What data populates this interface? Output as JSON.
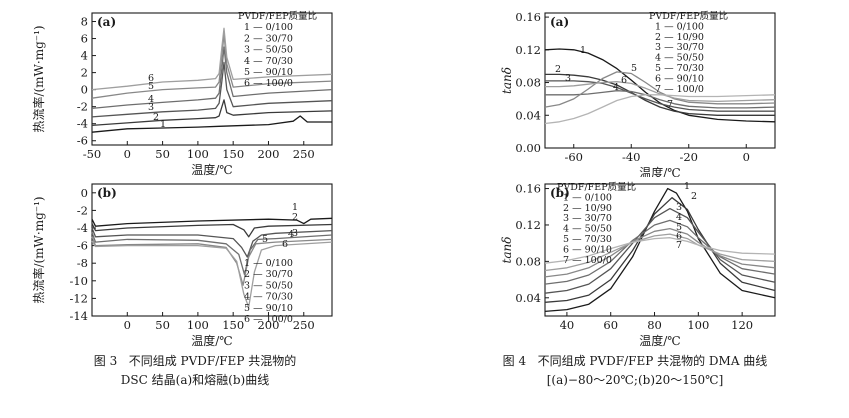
{
  "figures": [
    {
      "number_label": "图 3",
      "caption_line1": "不同组成 PVDF/FEP 共混物的",
      "caption_line2": "DSC 结晶(a)和熔融(b)曲线"
    },
    {
      "number_label": "图 4",
      "caption_line1": "不同组成 PVDF/FEP 共混物的 DMA 曲线",
      "caption_line2": "[(a)−80～20℃;(b)20～150℃]"
    }
  ],
  "chart_data": [
    {
      "id": "fig3a",
      "type": "line",
      "panel_label": "(a)",
      "xlabel": "温度/℃",
      "ylabel": "热流率/(mW·mg⁻¹)",
      "xlim": [
        -50,
        290
      ],
      "ylim": [
        -6.5,
        9
      ],
      "xticks": [
        -50,
        0,
        50,
        100,
        150,
        200,
        250
      ],
      "yticks": [
        -6,
        -4,
        -2,
        0,
        2,
        4,
        6,
        8
      ],
      "legend_title": "PVDF/FEP质量比",
      "legend_position": "top-right",
      "legend": [
        "1 — 0/100",
        "2 — 30/70",
        "3 — 50/50",
        "4 — 70/30",
        "5 — 90/10",
        "6 — 100/0"
      ],
      "series": [
        {
          "name": "1 — 0/100",
          "label": "1",
          "x": [
            -50,
            0,
            50,
            100,
            130,
            200,
            235,
            245,
            255,
            290
          ],
          "y": [
            -5.0,
            -4.6,
            -4.5,
            -4.4,
            -4.3,
            -4.1,
            -3.7,
            -3.1,
            -3.8,
            -3.8
          ]
        },
        {
          "name": "2 — 30/70",
          "label": "2",
          "x": [
            -50,
            0,
            50,
            100,
            125,
            130,
            134,
            137,
            141,
            150,
            200,
            290
          ],
          "y": [
            -4.2,
            -3.9,
            -3.6,
            -3.4,
            -3.3,
            -3.1,
            -2.0,
            -1.2,
            -2.7,
            -3.0,
            -2.7,
            -2.5
          ]
        },
        {
          "name": "3 — 50/50",
          "label": "3",
          "x": [
            -50,
            0,
            50,
            100,
            125,
            130,
            134,
            137,
            141,
            150,
            200,
            290
          ],
          "y": [
            -3.2,
            -2.9,
            -2.6,
            -2.4,
            -2.2,
            -1.6,
            1.0,
            3.2,
            0.0,
            -2.0,
            -1.6,
            -1.3
          ]
        },
        {
          "name": "4 — 70/30",
          "label": "4",
          "x": [
            -50,
            0,
            50,
            100,
            125,
            130,
            134,
            137,
            141,
            150,
            200,
            290
          ],
          "y": [
            -2.2,
            -1.8,
            -1.5,
            -1.2,
            -1.0,
            -0.4,
            2.5,
            5.0,
            2.0,
            -0.8,
            -0.4,
            0.0
          ]
        },
        {
          "name": "5 — 90/10",
          "label": "5",
          "x": [
            -50,
            0,
            50,
            100,
            125,
            130,
            134,
            137,
            141,
            150,
            200,
            290
          ],
          "y": [
            -1.0,
            -0.4,
            0.0,
            0.2,
            0.3,
            0.9,
            4.0,
            6.5,
            3.0,
            0.3,
            0.7,
            1.0
          ]
        },
        {
          "name": "6 — 100/0",
          "label": "6",
          "x": [
            -50,
            0,
            50,
            100,
            125,
            130,
            134,
            137,
            141,
            150,
            200,
            290
          ],
          "y": [
            0.0,
            0.4,
            0.9,
            1.1,
            1.3,
            1.9,
            5.0,
            7.2,
            3.8,
            1.2,
            1.5,
            1.8
          ]
        }
      ]
    },
    {
      "id": "fig3b",
      "type": "line",
      "panel_label": "(b)",
      "xlabel": "温度/℃",
      "ylabel": "热流率/(mW·mg⁻¹)",
      "xlim": [
        -50,
        290
      ],
      "ylim": [
        -14,
        1
      ],
      "xticks": [
        0,
        50,
        100,
        150,
        200,
        250
      ],
      "yticks": [
        -14,
        -12,
        -10,
        -8,
        -6,
        -4,
        -2,
        0
      ],
      "legend_position": "bottom-right",
      "legend": [
        "1 — 0/100",
        "2 — 30/70",
        "3 — 50/50",
        "4 — 70/30",
        "5 — 90/10",
        "6 — 100/0"
      ],
      "series": [
        {
          "name": "1 — 0/100",
          "label": "1",
          "x": [
            -50,
            -45,
            0,
            100,
            200,
            240,
            250,
            260,
            290
          ],
          "y": [
            -3.0,
            -3.8,
            -3.5,
            -3.2,
            -3.0,
            -3.1,
            -3.5,
            -3.0,
            -2.9
          ]
        },
        {
          "name": "2 — 30/70",
          "label": "2",
          "x": [
            -50,
            -45,
            0,
            100,
            150,
            165,
            172,
            180,
            200,
            290
          ],
          "y": [
            -3.5,
            -4.3,
            -4.0,
            -3.7,
            -3.6,
            -4.2,
            -5.0,
            -4.0,
            -3.8,
            -3.6
          ]
        },
        {
          "name": "3 — 50/50",
          "label": "3",
          "x": [
            -50,
            -45,
            0,
            100,
            150,
            162,
            170,
            178,
            190,
            210,
            290
          ],
          "y": [
            -4.0,
            -5.0,
            -4.8,
            -4.8,
            -5.2,
            -6.2,
            -7.3,
            -5.5,
            -4.8,
            -4.6,
            -4.3
          ]
        },
        {
          "name": "4 — 70/30",
          "label": "4",
          "x": [
            -50,
            -45,
            0,
            100,
            140,
            158,
            166,
            174,
            185,
            210,
            290
          ],
          "y": [
            -4.5,
            -5.6,
            -5.3,
            -5.4,
            -5.8,
            -7.0,
            -9.3,
            -6.5,
            -5.3,
            -5.2,
            -4.8
          ]
        },
        {
          "name": "5 — 90/10",
          "label": "5",
          "x": [
            -50,
            -45,
            0,
            100,
            140,
            155,
            164,
            172,
            182,
            210,
            290
          ],
          "y": [
            -5.0,
            -6.0,
            -5.9,
            -5.8,
            -6.2,
            -8.0,
            -10.5,
            -7.3,
            -5.8,
            -5.6,
            -5.3
          ]
        },
        {
          "name": "6 — 100/0",
          "label": "6",
          "x": [
            -50,
            -45,
            0,
            100,
            140,
            155,
            165,
            172,
            180,
            190,
            210,
            290
          ],
          "y": [
            -5.5,
            -6.1,
            -6.0,
            -6.0,
            -6.3,
            -7.8,
            -11.5,
            -13.0,
            -9.0,
            -6.5,
            -6.0,
            -5.6
          ]
        }
      ]
    },
    {
      "id": "fig4a",
      "type": "line",
      "panel_label": "(a)",
      "xlabel": "温度/℃",
      "ylabel": "tanδ",
      "xlim": [
        -70,
        10
      ],
      "ylim": [
        0,
        0.165
      ],
      "xticks": [
        -60,
        -40,
        -20,
        0
      ],
      "yticks": [
        0.0,
        0.04,
        0.08,
        0.12,
        0.16
      ],
      "legend_title": "PVDF/FEP质量比",
      "legend_position": "top-right",
      "legend": [
        "1 — 0/100",
        "2 — 10/90",
        "3 — 30/70",
        "4 — 50/50",
        "5 — 70/30",
        "6 — 90/10",
        "7 — 100/0"
      ],
      "series": [
        {
          "name": "1 — 0/100",
          "label": "1",
          "x": [
            -70,
            -65,
            -60,
            -55,
            -50,
            -45,
            -40,
            -35,
            -30,
            -25,
            -20,
            -10,
            0,
            10
          ],
          "y": [
            0.12,
            0.121,
            0.12,
            0.116,
            0.108,
            0.097,
            0.083,
            0.068,
            0.055,
            0.046,
            0.04,
            0.035,
            0.033,
            0.032
          ]
        },
        {
          "name": "2 — 10/90",
          "label": "2",
          "x": [
            -70,
            -65,
            -60,
            -55,
            -50,
            -45,
            -40,
            -35,
            -30,
            -25,
            -20,
            -10,
            0,
            10
          ],
          "y": [
            0.09,
            0.09,
            0.089,
            0.087,
            0.083,
            0.077,
            0.068,
            0.058,
            0.05,
            0.045,
            0.042,
            0.04,
            0.04,
            0.04
          ]
        },
        {
          "name": "3 — 30/70",
          "label": "3",
          "x": [
            -70,
            -65,
            -60,
            -55,
            -50,
            -45,
            -40,
            -35,
            -30,
            -25,
            -20,
            -10,
            0,
            10
          ],
          "y": [
            0.082,
            0.082,
            0.082,
            0.081,
            0.079,
            0.074,
            0.067,
            0.06,
            0.054,
            0.05,
            0.047,
            0.045,
            0.045,
            0.045
          ]
        },
        {
          "name": "4 — 50/50",
          "label": "4",
          "x": [
            -70,
            -65,
            -60,
            -55,
            -50,
            -45,
            -40,
            -35,
            -30,
            -25,
            -20,
            -10,
            0,
            10
          ],
          "y": [
            0.065,
            0.065,
            0.065,
            0.066,
            0.068,
            0.07,
            0.069,
            0.065,
            0.059,
            0.054,
            0.051,
            0.049,
            0.049,
            0.05
          ]
        },
        {
          "name": "5 — 70/30",
          "label": "5",
          "x": [
            -70,
            -65,
            -60,
            -55,
            -50,
            -45,
            -40,
            -35,
            -30,
            -25,
            -20,
            -10,
            0,
            10
          ],
          "y": [
            0.05,
            0.053,
            0.06,
            0.072,
            0.085,
            0.093,
            0.091,
            0.08,
            0.068,
            0.06,
            0.056,
            0.054,
            0.054,
            0.055
          ]
        },
        {
          "name": "6 — 90/10",
          "label": "6",
          "x": [
            -70,
            -65,
            -60,
            -55,
            -50,
            -45,
            -40,
            -35,
            -30,
            -25,
            -20,
            -10,
            0,
            10
          ],
          "y": [
            0.075,
            0.075,
            0.076,
            0.078,
            0.08,
            0.081,
            0.079,
            0.073,
            0.066,
            0.061,
            0.058,
            0.057,
            0.058,
            0.059
          ]
        },
        {
          "name": "7 — 100/0",
          "label": "7",
          "x": [
            -70,
            -65,
            -60,
            -55,
            -50,
            -45,
            -40,
            -35,
            -30,
            -25,
            -20,
            -10,
            0,
            10
          ],
          "y": [
            0.03,
            0.032,
            0.036,
            0.042,
            0.05,
            0.058,
            0.063,
            0.065,
            0.065,
            0.064,
            0.063,
            0.063,
            0.064,
            0.065
          ]
        }
      ]
    },
    {
      "id": "fig4b",
      "type": "line",
      "panel_label": "(b)",
      "xlabel": "温度/℃",
      "ylabel": "tanδ",
      "xlim": [
        30,
        135
      ],
      "ylim": [
        0.02,
        0.165
      ],
      "xticks": [
        40,
        60,
        80,
        100,
        120
      ],
      "yticks": [
        0.04,
        0.08,
        0.12,
        0.16
      ],
      "legend_title": "PVDF/FEP质量比",
      "legend_position": "top-left",
      "legend": [
        "1 — 0/100",
        "2 — 10/90",
        "3 — 30/70",
        "4 — 50/50",
        "5 — 70/30",
        "6 — 90/10",
        "7 — 100/0"
      ],
      "series": [
        {
          "name": "1 — 0/100",
          "label": "1",
          "x": [
            30,
            40,
            50,
            60,
            70,
            80,
            86,
            90,
            95,
            100,
            110,
            120,
            135
          ],
          "y": [
            0.025,
            0.027,
            0.033,
            0.05,
            0.085,
            0.135,
            0.16,
            0.155,
            0.135,
            0.105,
            0.067,
            0.048,
            0.04
          ]
        },
        {
          "name": "2 — 10/90",
          "label": "2",
          "x": [
            30,
            40,
            50,
            60,
            70,
            80,
            88,
            95,
            100,
            110,
            120,
            135
          ],
          "y": [
            0.035,
            0.037,
            0.043,
            0.06,
            0.092,
            0.132,
            0.15,
            0.137,
            0.115,
            0.078,
            0.057,
            0.048
          ]
        },
        {
          "name": "3 — 30/70",
          "label": "3",
          "x": [
            30,
            40,
            50,
            60,
            70,
            80,
            87,
            95,
            100,
            110,
            120,
            135
          ],
          "y": [
            0.045,
            0.048,
            0.055,
            0.072,
            0.1,
            0.128,
            0.138,
            0.128,
            0.112,
            0.082,
            0.065,
            0.057
          ]
        },
        {
          "name": "4 — 50/50",
          "label": "4",
          "x": [
            30,
            40,
            50,
            60,
            70,
            80,
            87,
            95,
            100,
            110,
            120,
            135
          ],
          "y": [
            0.055,
            0.058,
            0.065,
            0.08,
            0.103,
            0.12,
            0.125,
            0.118,
            0.106,
            0.085,
            0.072,
            0.066
          ]
        },
        {
          "name": "5 — 70/30",
          "label": "5",
          "x": [
            30,
            40,
            50,
            60,
            70,
            80,
            87,
            95,
            100,
            110,
            120,
            135
          ],
          "y": [
            0.063,
            0.066,
            0.073,
            0.086,
            0.102,
            0.113,
            0.116,
            0.11,
            0.101,
            0.086,
            0.077,
            0.073
          ]
        },
        {
          "name": "6 — 90/10",
          "label": "6",
          "x": [
            30,
            40,
            50,
            60,
            70,
            80,
            87,
            95,
            100,
            110,
            120,
            135
          ],
          "y": [
            0.07,
            0.073,
            0.079,
            0.09,
            0.101,
            0.108,
            0.11,
            0.105,
            0.098,
            0.088,
            0.082,
            0.08
          ]
        },
        {
          "name": "7 — 100/0",
          "label": "7",
          "x": [
            30,
            40,
            50,
            60,
            70,
            80,
            87,
            95,
            100,
            110,
            120,
            135
          ],
          "y": [
            0.078,
            0.081,
            0.086,
            0.094,
            0.101,
            0.105,
            0.106,
            0.102,
            0.098,
            0.092,
            0.089,
            0.088
          ]
        }
      ]
    }
  ]
}
